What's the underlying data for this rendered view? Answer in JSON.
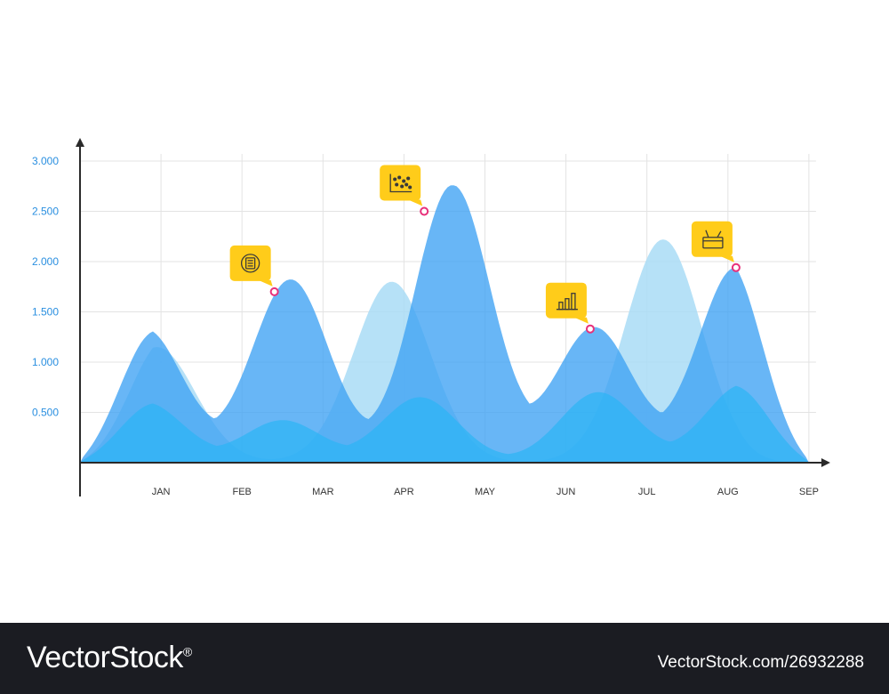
{
  "chart_data": {
    "type": "area",
    "x": [
      "",
      "JAN",
      "FEB",
      "MAR",
      "APR",
      "MAY",
      "JUN",
      "JUL",
      "AUG",
      "SEP"
    ],
    "y_ticks": [
      "0.500",
      "1.000",
      "1.500",
      "2.000",
      "2.500",
      "3.000"
    ],
    "ylim": [
      0,
      3
    ],
    "grid": true,
    "series": [
      {
        "color": "#a9dcf6",
        "opacity": 0.85,
        "peaks": [
          [
            0.95,
            1.15
          ],
          [
            3.85,
            1.8
          ],
          [
            7.2,
            2.22
          ]
        ]
      },
      {
        "color": "#3ea2f4",
        "opacity": 0.78,
        "peaks": [
          [
            0.8,
            1.33
          ],
          [
            2.6,
            1.82
          ],
          [
            4.6,
            2.76
          ],
          [
            6.35,
            1.34
          ],
          [
            8.1,
            1.94
          ]
        ]
      },
      {
        "color": "#2bb5f5",
        "opacity": 0.7,
        "peaks": [
          [
            0.8,
            0.6
          ],
          [
            2.5,
            0.42
          ],
          [
            4.2,
            0.65
          ],
          [
            6.4,
            0.7
          ],
          [
            8.2,
            0.78
          ]
        ]
      }
    ],
    "markers": [
      {
        "x": 2.4,
        "y": 1.7,
        "icon": "target-calculator-icon"
      },
      {
        "x": 4.25,
        "y": 2.5,
        "icon": "dot-plot-icon"
      },
      {
        "x": 6.3,
        "y": 1.33,
        "icon": "bar-chart-icon"
      },
      {
        "x": 8.1,
        "y": 1.94,
        "icon": "toolbox-icon"
      }
    ],
    "colors": {
      "axis": "#2a2a2a",
      "grid": "#e3e3e3",
      "ytick": "#2a8fe0",
      "callout": "#ffcc1a",
      "marker": "#e8307a"
    }
  },
  "footer": {
    "brand": "VectorStock",
    "reg": "®",
    "image_id": "VectorStock.com/26932288"
  }
}
